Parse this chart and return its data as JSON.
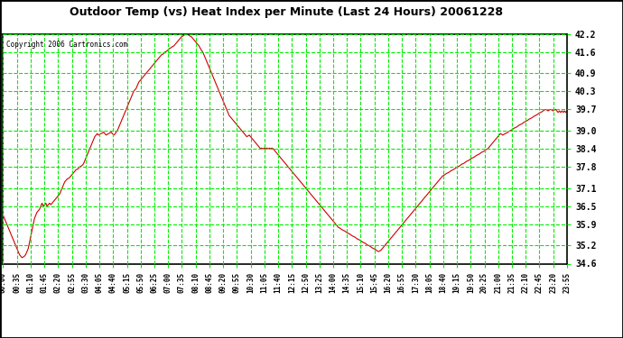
{
  "title": "Outdoor Temp (vs) Heat Index per Minute (Last 24 Hours) 20061228",
  "copyright": "Copyright 2006 Cartronics.com",
  "bg_color": "#ffffff",
  "fig_bg": "#ffffff",
  "line_color": "#cc0000",
  "grid_color": "#00ee00",
  "title_color": "#000000",
  "text_color": "#000000",
  "copyright_color": "#000000",
  "ytick_color": "#000000",
  "xtick_color": "#000000",
  "yticks": [
    34.6,
    35.2,
    35.9,
    36.5,
    37.1,
    37.8,
    38.4,
    39.0,
    39.7,
    40.3,
    40.9,
    41.6,
    42.2
  ],
  "ymin": 34.6,
  "ymax": 42.2,
  "xtick_labels": [
    "00:00",
    "00:35",
    "01:10",
    "01:45",
    "02:20",
    "02:55",
    "03:30",
    "04:05",
    "04:40",
    "05:15",
    "05:50",
    "06:25",
    "07:00",
    "07:35",
    "08:10",
    "08:45",
    "09:20",
    "09:55",
    "10:30",
    "11:05",
    "11:40",
    "12:15",
    "12:50",
    "13:25",
    "14:00",
    "14:35",
    "15:10",
    "15:45",
    "16:20",
    "16:55",
    "17:30",
    "18:05",
    "18:40",
    "19:15",
    "19:50",
    "20:25",
    "21:00",
    "21:35",
    "22:10",
    "22:45",
    "23:20",
    "23:55"
  ],
  "data_y": [
    36.2,
    36.1,
    36.0,
    35.9,
    35.8,
    35.7,
    35.6,
    35.5,
    35.4,
    35.3,
    35.2,
    35.1,
    35.0,
    34.9,
    34.85,
    34.8,
    34.82,
    34.85,
    34.9,
    35.0,
    35.1,
    35.3,
    35.5,
    35.7,
    35.9,
    36.1,
    36.2,
    36.3,
    36.35,
    36.4,
    36.5,
    36.6,
    36.5,
    36.55,
    36.6,
    36.5,
    36.55,
    36.6,
    36.55,
    36.6,
    36.65,
    36.7,
    36.75,
    36.8,
    36.85,
    36.9,
    37.0,
    37.1,
    37.2,
    37.3,
    37.35,
    37.4,
    37.42,
    37.45,
    37.5,
    37.55,
    37.6,
    37.65,
    37.7,
    37.72,
    37.75,
    37.8,
    37.82,
    37.85,
    37.9,
    38.0,
    38.1,
    38.2,
    38.3,
    38.4,
    38.5,
    38.6,
    38.7,
    38.8,
    38.85,
    38.9,
    38.85,
    38.88,
    38.9,
    38.92,
    38.95,
    38.9,
    38.85,
    38.88,
    38.9,
    38.92,
    38.95,
    38.9,
    38.85,
    38.88,
    38.95,
    39.0,
    39.1,
    39.2,
    39.3,
    39.4,
    39.5,
    39.6,
    39.7,
    39.8,
    39.9,
    40.0,
    40.1,
    40.2,
    40.3,
    40.35,
    40.4,
    40.5,
    40.6,
    40.65,
    40.7,
    40.75,
    40.8,
    40.85,
    40.9,
    40.95,
    41.0,
    41.05,
    41.1,
    41.15,
    41.2,
    41.25,
    41.3,
    41.35,
    41.4,
    41.45,
    41.5,
    41.52,
    41.55,
    41.6,
    41.62,
    41.65,
    41.7,
    41.72,
    41.75,
    41.78,
    41.8,
    41.85,
    41.9,
    41.95,
    42.0,
    42.05,
    42.1,
    42.12,
    42.15,
    42.18,
    42.2,
    42.18,
    42.15,
    42.12,
    42.1,
    42.05,
    42.0,
    41.95,
    41.9,
    41.85,
    41.8,
    41.72,
    41.65,
    41.6,
    41.5,
    41.4,
    41.3,
    41.2,
    41.1,
    41.0,
    40.9,
    40.8,
    40.7,
    40.6,
    40.5,
    40.4,
    40.3,
    40.2,
    40.1,
    40.0,
    39.9,
    39.8,
    39.7,
    39.6,
    39.5,
    39.45,
    39.4,
    39.35,
    39.3,
    39.25,
    39.2,
    39.15,
    39.1,
    39.05,
    39.0,
    38.95,
    38.9,
    38.85,
    38.8,
    38.82,
    38.85,
    38.8,
    38.75,
    38.7,
    38.65,
    38.6,
    38.55,
    38.5,
    38.45,
    38.4,
    38.42,
    38.4,
    38.42,
    38.4,
    38.42,
    38.4,
    38.42,
    38.4,
    38.42,
    38.4,
    38.35,
    38.3,
    38.25,
    38.2,
    38.15,
    38.1,
    38.05,
    38.0,
    37.95,
    37.9,
    37.85,
    37.8,
    37.75,
    37.7,
    37.65,
    37.6,
    37.55,
    37.5,
    37.45,
    37.4,
    37.35,
    37.3,
    37.25,
    37.2,
    37.15,
    37.1,
    37.05,
    37.0,
    36.95,
    36.9,
    36.85,
    36.8,
    36.75,
    36.7,
    36.65,
    36.6,
    36.55,
    36.5,
    36.45,
    36.4,
    36.35,
    36.3,
    36.25,
    36.2,
    36.15,
    36.1,
    36.05,
    36.0,
    35.95,
    35.9,
    35.85,
    35.8,
    35.78,
    35.75,
    35.72,
    35.7,
    35.68,
    35.65,
    35.62,
    35.6,
    35.58,
    35.55,
    35.52,
    35.5,
    35.48,
    35.45,
    35.42,
    35.4,
    35.38,
    35.35,
    35.32,
    35.3,
    35.28,
    35.25,
    35.22,
    35.2,
    35.18,
    35.15,
    35.12,
    35.1,
    35.08,
    35.05,
    35.02,
    35.0,
    35.02,
    35.05,
    35.1,
    35.15,
    35.2,
    35.25,
    35.3,
    35.35,
    35.4,
    35.45,
    35.5,
    35.55,
    35.6,
    35.65,
    35.7,
    35.75,
    35.8,
    35.85,
    35.9,
    35.95,
    36.0,
    36.05,
    36.1,
    36.15,
    36.2,
    36.25,
    36.3,
    36.35,
    36.4,
    36.45,
    36.5,
    36.55,
    36.6,
    36.65,
    36.7,
    36.75,
    36.8,
    36.85,
    36.9,
    36.95,
    37.0,
    37.05,
    37.1,
    37.15,
    37.2,
    37.25,
    37.3,
    37.35,
    37.4,
    37.45,
    37.5,
    37.52,
    37.55,
    37.58,
    37.6,
    37.62,
    37.65,
    37.68,
    37.7,
    37.72,
    37.75,
    37.78,
    37.8,
    37.82,
    37.85,
    37.88,
    37.9,
    37.92,
    37.95,
    37.98,
    38.0,
    38.02,
    38.05,
    38.08,
    38.1,
    38.12,
    38.15,
    38.18,
    38.2,
    38.22,
    38.25,
    38.28,
    38.3,
    38.32,
    38.35,
    38.38,
    38.4,
    38.45,
    38.5,
    38.55,
    38.6,
    38.65,
    38.7,
    38.75,
    38.8,
    38.85,
    38.9,
    38.88,
    38.85,
    38.88,
    38.9,
    38.92,
    38.95,
    38.98,
    39.0,
    39.02,
    39.05,
    39.08,
    39.1,
    39.12,
    39.15,
    39.18,
    39.2,
    39.22,
    39.25,
    39.28,
    39.3,
    39.32,
    39.35,
    39.38,
    39.4,
    39.42,
    39.45,
    39.48,
    39.5,
    39.52,
    39.55,
    39.58,
    39.6,
    39.62,
    39.65,
    39.68,
    39.7,
    39.68,
    39.65,
    39.68,
    39.7,
    39.68,
    39.65,
    39.68,
    39.7,
    39.65,
    39.6,
    39.65,
    39.6,
    39.65,
    39.6,
    39.65,
    39.6,
    39.65
  ]
}
